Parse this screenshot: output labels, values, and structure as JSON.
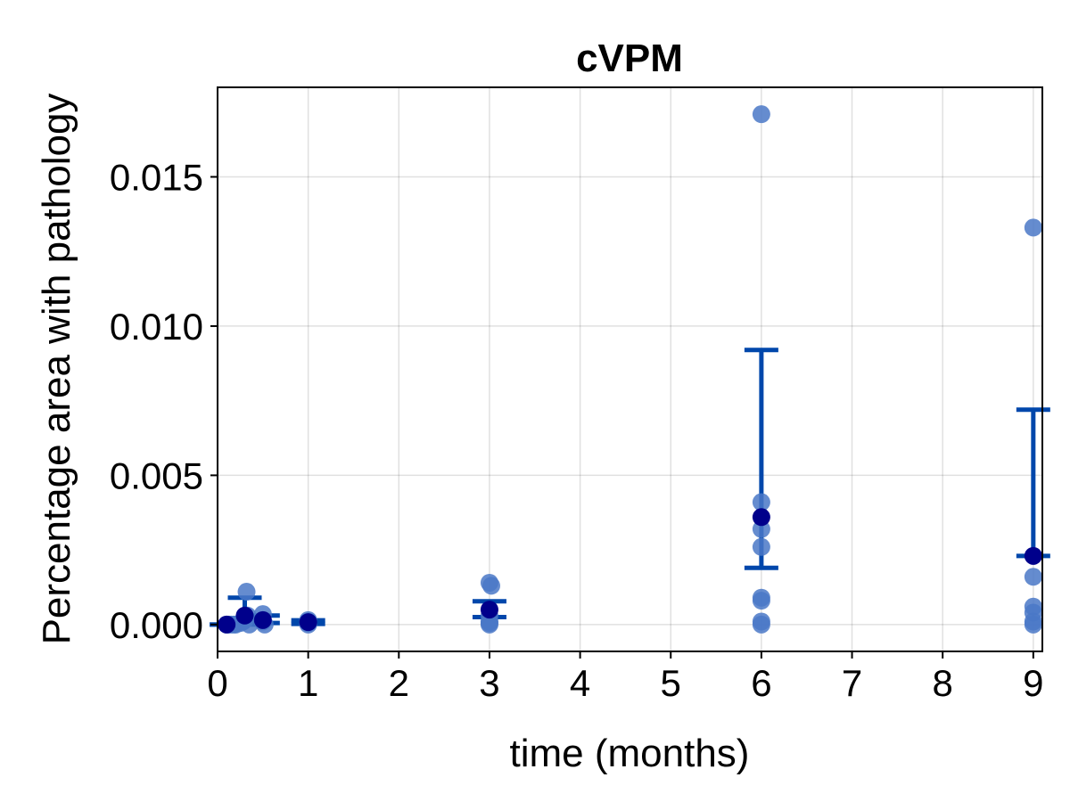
{
  "chart_data": {
    "type": "scatter",
    "title": "cVPM",
    "xlabel": "time (months)",
    "ylabel": "Percentage area with pathology",
    "xlim": [
      0,
      9.1
    ],
    "ylim": [
      -0.0009,
      0.018
    ],
    "xticks": [
      0,
      1,
      2,
      3,
      4,
      5,
      6,
      7,
      8,
      9
    ],
    "xtick_labels": [
      "0",
      "1",
      "2",
      "3",
      "4",
      "5",
      "6",
      "7",
      "8",
      "9"
    ],
    "yticks": [
      0.0,
      0.005,
      0.01,
      0.015
    ],
    "ytick_labels": [
      "0.000",
      "0.005",
      "0.010",
      "0.015"
    ],
    "grid": true,
    "colors": {
      "points": "#4a78c7",
      "mean": "#00008b",
      "errorbar": "#0047ab"
    },
    "points": [
      {
        "x": 0.1,
        "y": 0.0
      },
      {
        "x": 0.12,
        "y": 0.0
      },
      {
        "x": 0.15,
        "y": 0.0
      },
      {
        "x": 0.18,
        "y": 0.0
      },
      {
        "x": 0.2,
        "y": 0.0
      },
      {
        "x": 0.25,
        "y": 5e-05
      },
      {
        "x": 0.28,
        "y": 0.0001
      },
      {
        "x": 0.3,
        "y": 0.00015
      },
      {
        "x": 0.3,
        "y": 0.0002
      },
      {
        "x": 0.32,
        "y": 0.0011
      },
      {
        "x": 0.33,
        "y": 0.0003
      },
      {
        "x": 0.35,
        "y": 0.0
      },
      {
        "x": 0.5,
        "y": 0.00035
      },
      {
        "x": 0.5,
        "y": 0.0001
      },
      {
        "x": 0.52,
        "y": 0.0
      },
      {
        "x": 1.0,
        "y": 0.00015
      },
      {
        "x": 1.0,
        "y": 0.0001
      },
      {
        "x": 1.0,
        "y": 5e-05
      },
      {
        "x": 1.0,
        "y": 0.0
      },
      {
        "x": 3.0,
        "y": 0.0014
      },
      {
        "x": 3.02,
        "y": 0.0013
      },
      {
        "x": 3.0,
        "y": 0.0003
      },
      {
        "x": 3.0,
        "y": 0.0001
      },
      {
        "x": 3.0,
        "y": 5e-05
      },
      {
        "x": 3.0,
        "y": 0.0
      },
      {
        "x": 6.0,
        "y": 0.0171
      },
      {
        "x": 6.0,
        "y": 0.0041
      },
      {
        "x": 6.0,
        "y": 0.0032
      },
      {
        "x": 6.0,
        "y": 0.0026
      },
      {
        "x": 6.0,
        "y": 0.0009
      },
      {
        "x": 6.0,
        "y": 0.0008
      },
      {
        "x": 6.0,
        "y": 0.0001
      },
      {
        "x": 6.0,
        "y": 0.0
      },
      {
        "x": 9.0,
        "y": 0.0133
      },
      {
        "x": 9.0,
        "y": 0.0016
      },
      {
        "x": 9.0,
        "y": 0.0006
      },
      {
        "x": 9.0,
        "y": 0.0004
      },
      {
        "x": 9.0,
        "y": 0.0001
      },
      {
        "x": 9.0,
        "y": 0.0
      }
    ],
    "means": [
      {
        "x": 0.1,
        "y": 0.0,
        "lower": 0.0,
        "upper": 0.0
      },
      {
        "x": 0.3,
        "y": 0.0003,
        "lower": 0.0,
        "upper": 0.0009
      },
      {
        "x": 0.5,
        "y": 0.00015,
        "lower": 5e-05,
        "upper": 0.0003
      },
      {
        "x": 1.0,
        "y": 8e-05,
        "lower": 2e-05,
        "upper": 0.00014
      },
      {
        "x": 3.0,
        "y": 0.0005,
        "lower": 0.00025,
        "upper": 0.00078
      },
      {
        "x": 6.0,
        "y": 0.0036,
        "lower": 0.0019,
        "upper": 0.0092
      },
      {
        "x": 9.0,
        "y": 0.0023,
        "lower": 0.0023,
        "upper": 0.0072
      }
    ]
  }
}
